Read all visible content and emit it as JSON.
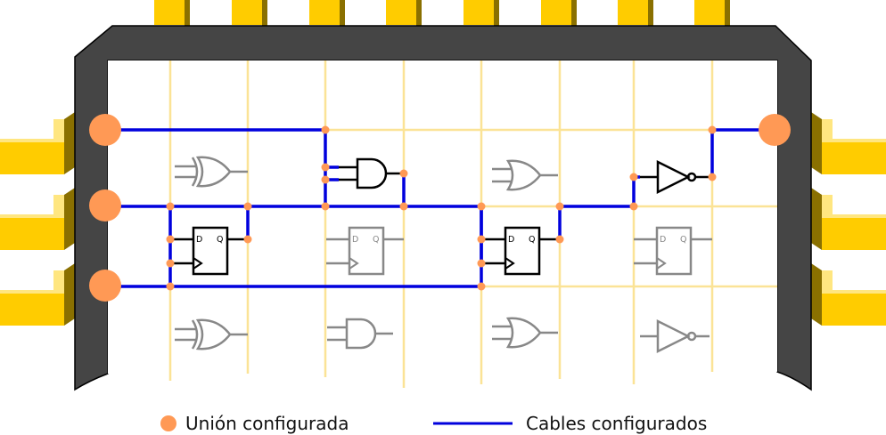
{
  "legend": {
    "junction_label": "Unión configurada",
    "wire_label": "Cables configurados"
  },
  "flipflop_pins": {
    "d": "D",
    "q": "Q"
  },
  "colors": {
    "chip_body": "#454545",
    "pin_gold": "#ffcc00",
    "pin_shadow": "#8a7000",
    "grid": "#fbe396",
    "wire": "#0000dd",
    "junction": "#ff9955",
    "gate_active": "#000000",
    "gate_inactive": "#888888"
  }
}
